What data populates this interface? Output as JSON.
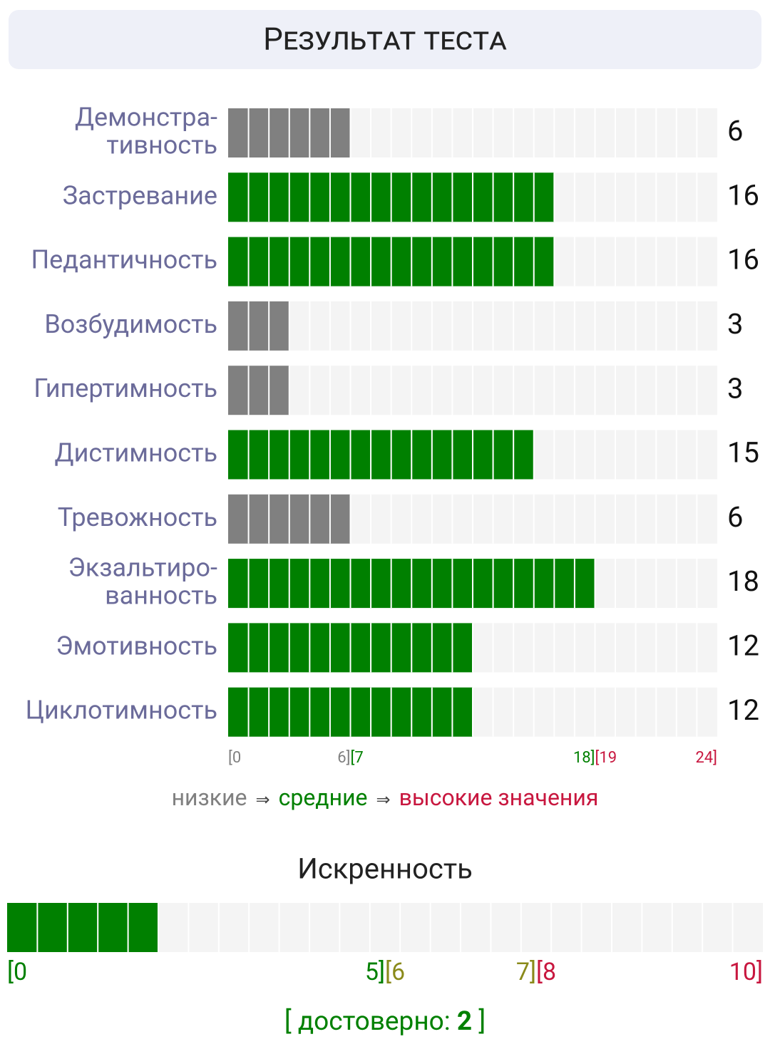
{
  "header": {
    "title": "Результат теста"
  },
  "scales": {
    "ticks": [
      {
        "value": 0,
        "label": "[0",
        "color": "#808080"
      },
      {
        "value": 6,
        "label": "6]",
        "color": "#808080"
      },
      {
        "value": 7,
        "label": "[7",
        "color": "#008000"
      },
      {
        "value": 18,
        "label": "18]",
        "color": "#008000"
      },
      {
        "value": 19,
        "label": "[19",
        "color": "#c8173f"
      },
      {
        "value": 24,
        "label": "24]",
        "color": "#c8173f"
      }
    ],
    "items": [
      {
        "label": [
          "Демонстра-",
          "тивность"
        ],
        "value": 6
      },
      {
        "label": [
          "Застревание"
        ],
        "value": 16
      },
      {
        "label": [
          "Педантичность"
        ],
        "value": 16
      },
      {
        "label": [
          "Возбудимость"
        ],
        "value": 3
      },
      {
        "label": [
          "Гипертимность"
        ],
        "value": 3
      },
      {
        "label": [
          "Дистимность"
        ],
        "value": 15
      },
      {
        "label": [
          "Тревожность"
        ],
        "value": 6
      },
      {
        "label": [
          "Экзальтиро-",
          "ванность"
        ],
        "value": 18
      },
      {
        "label": [
          "Эмотивность"
        ],
        "value": 12
      },
      {
        "label": [
          "Циклотимность"
        ],
        "value": 12
      }
    ]
  },
  "legend": {
    "low": "низкие",
    "arrow": "⇒",
    "mid": "средние",
    "high": "высокие значения"
  },
  "sincerity": {
    "title": "Искренность",
    "value": 2,
    "ticks": [
      {
        "value": 0,
        "label": "[0",
        "color": "#008000"
      },
      {
        "value": 5,
        "label": "5]",
        "color": "#008000"
      },
      {
        "value": 6,
        "label": "[6",
        "color": "#8a8a1a"
      },
      {
        "value": 7,
        "label": "7]",
        "color": "#8a8a1a"
      },
      {
        "value": 8,
        "label": "[8",
        "color": "#c8173f"
      },
      {
        "value": 10,
        "label": "10]",
        "color": "#c8173f"
      }
    ],
    "verdict": {
      "prefix": "[ достоверно:",
      "suffix": "]"
    }
  }
}
